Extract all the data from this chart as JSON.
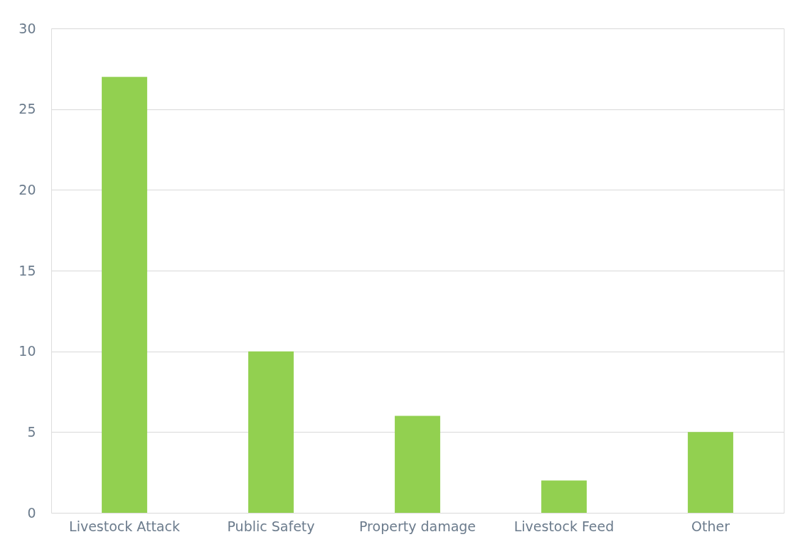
{
  "chart_data": {
    "type": "bar",
    "categories": [
      "Livestock Attack",
      "Public Safety",
      "Property damage",
      "Livestock Feed",
      "Other"
    ],
    "values": [
      27,
      10,
      6,
      2,
      5
    ],
    "color": "#92d050",
    "ylim": [
      0,
      30
    ],
    "yticks": [
      0,
      5,
      10,
      15,
      20,
      25,
      30
    ],
    "grid": "y"
  }
}
